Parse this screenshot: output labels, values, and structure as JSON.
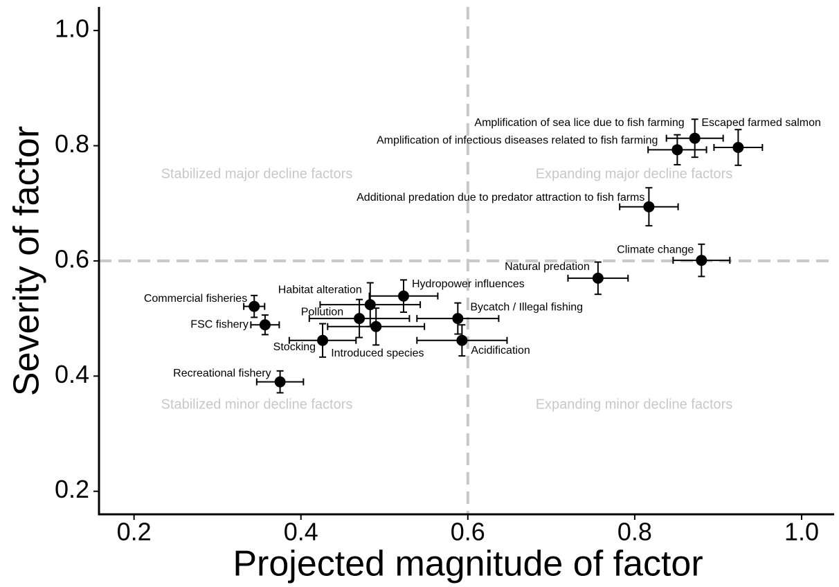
{
  "chart_data": {
    "type": "scatter",
    "xlabel": "Projected magnitude of factor",
    "ylabel": "Severity of factor",
    "xlim": [
      0.158,
      1.039
    ],
    "ylim": [
      0.16,
      1.041
    ],
    "xticks": [
      {
        "value": 0.2,
        "label": "0.2"
      },
      {
        "value": 0.4,
        "label": "0.4"
      },
      {
        "value": 0.6,
        "label": "0.6"
      },
      {
        "value": 0.8,
        "label": "0.8"
      },
      {
        "value": 1.0,
        "label": "1.0"
      }
    ],
    "yticks": [
      {
        "value": 0.2,
        "label": "0.2"
      },
      {
        "value": 0.4,
        "label": "0.4"
      },
      {
        "value": 0.6,
        "label": "0.6"
      },
      {
        "value": 0.8,
        "label": "0.8"
      },
      {
        "value": 1.0,
        "label": "1.0"
      }
    ],
    "vline": 0.6,
    "hline": 0.6,
    "color": "#000000",
    "annotations": [
      "Stabilized major decline factors",
      "Expanding major decline factors",
      "Stabilized minor decline factors",
      "Expanding minor decline factors"
    ],
    "points": [
      {
        "label": "Escaped farmed salmon",
        "x": 0.924,
        "y": 0.797,
        "xerr": 0.029,
        "yerr": 0.031
      },
      {
        "label": "Amplification of sea lice due to fish farming",
        "x": 0.872,
        "y": 0.813,
        "xerr": 0.034,
        "yerr": 0.033
      },
      {
        "label": "Amplification of infectious diseases related to fish farming",
        "x": 0.851,
        "y": 0.793,
        "xerr": 0.035,
        "yerr": 0.026
      },
      {
        "label": "Additional predation due to predator attraction to fish farms",
        "x": 0.817,
        "y": 0.694,
        "xerr": 0.035,
        "yerr": 0.033
      },
      {
        "label": "Climate change",
        "x": 0.88,
        "y": 0.601,
        "xerr": 0.034,
        "yerr": 0.028
      },
      {
        "label": "Natural predation",
        "x": 0.756,
        "y": 0.57,
        "xerr": 0.036,
        "yerr": 0.028
      },
      {
        "label": "Hydropower influences",
        "x": 0.523,
        "y": 0.539,
        "xerr": 0.041,
        "yerr": 0.028
      },
      {
        "label": "Habitat alteration",
        "x": 0.483,
        "y": 0.524,
        "xerr": 0.06,
        "yerr": 0.038
      },
      {
        "label": "Pollution",
        "x": 0.47,
        "y": 0.5,
        "xerr": 0.06,
        "yerr": 0.033
      },
      {
        "label": "Introduced species",
        "x": 0.49,
        "y": 0.486,
        "xerr": 0.058,
        "yerr": 0.032
      },
      {
        "label": "Bycatch / Illegal fishing",
        "x": 0.588,
        "y": 0.5,
        "xerr": 0.049,
        "yerr": 0.027
      },
      {
        "label": "Acidification",
        "x": 0.593,
        "y": 0.462,
        "xerr": 0.054,
        "yerr": 0.027
      },
      {
        "label": "Stocking",
        "x": 0.426,
        "y": 0.462,
        "xerr": 0.04,
        "yerr": 0.029
      },
      {
        "label": "Commercial fisheries",
        "x": 0.344,
        "y": 0.521,
        "xerr": 0.0125,
        "yerr": 0.019
      },
      {
        "label": "FSC fishery",
        "x": 0.357,
        "y": 0.489,
        "xerr": 0.017,
        "yerr": 0.017
      },
      {
        "label": "Recreational fishery",
        "x": 0.375,
        "y": 0.39,
        "xerr": 0.028,
        "yerr": 0.019
      }
    ]
  }
}
